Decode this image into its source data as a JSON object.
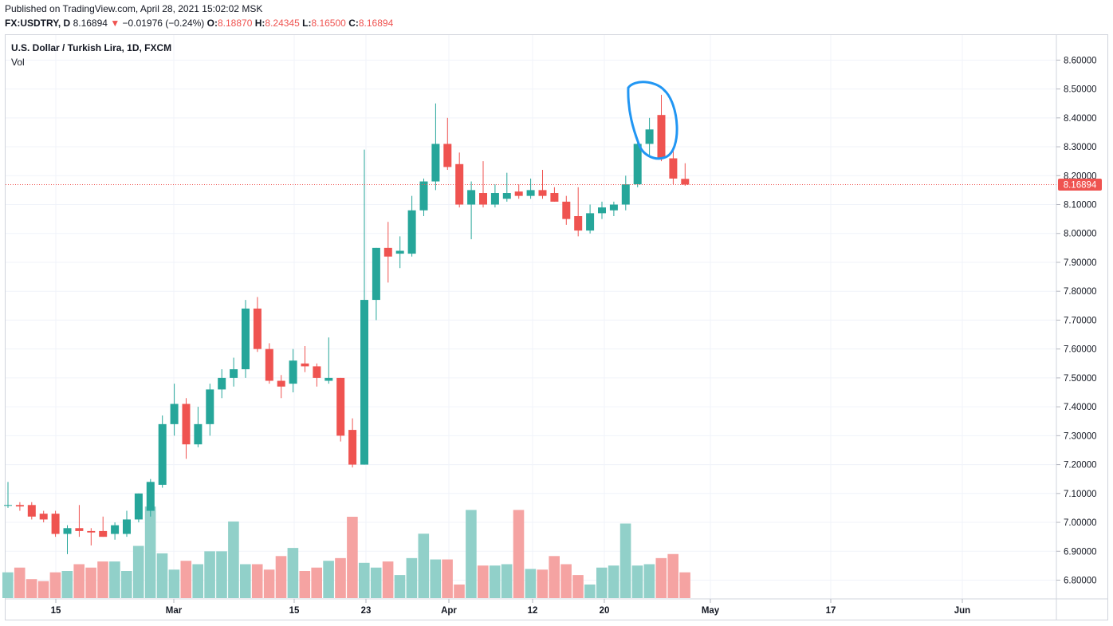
{
  "header": {
    "published": "Published on TradingView.com, April 28, 2021 15:02:02 MSK",
    "symbol": "FX:USDTRY, D",
    "last": "8.16894",
    "change": "−0.01976 (−0.24%)",
    "o_label": "O:",
    "o_value": "8.18870",
    "h_label": "H:",
    "h_value": "8.24345",
    "l_label": "L:",
    "l_value": "8.16500",
    "c_label": "C:",
    "c_value": "8.16894"
  },
  "legend": {
    "title": "U.S. Dollar / Turkish Lira, 1D, FXCM",
    "vol": "Vol"
  },
  "price_label": "8.16894",
  "colors": {
    "up": "#26a69a",
    "down": "#ef5350",
    "up_vol": "#91d0c9",
    "down_vol": "#f5a3a2",
    "grid": "#f0f3fa",
    "annotation": "#2196f3"
  },
  "chart_data": {
    "type": "candlestick",
    "symbol": "FX:USDTRY",
    "interval": "1D",
    "ylim": [
      6.75,
      8.65
    ],
    "y_ticks": [
      "8.60000",
      "8.50000",
      "8.40000",
      "8.30000",
      "8.20000",
      "8.10000",
      "8.00000",
      "7.90000",
      "7.80000",
      "7.70000",
      "7.60000",
      "7.50000",
      "7.40000",
      "7.30000",
      "7.20000",
      "7.10000",
      "7.00000",
      "6.90000",
      "6.80000"
    ],
    "x_ticks": [
      "15",
      "Mar",
      "15",
      "23",
      "Apr",
      "12",
      "20",
      "May",
      "17",
      "Jun"
    ],
    "last_price": 8.16894,
    "candles": [
      {
        "o": 7.06,
        "h": 7.14,
        "l": 7.05,
        "c": 7.06,
        "v": 0.38
      },
      {
        "o": 7.06,
        "h": 7.07,
        "l": 7.04,
        "c": 7.055,
        "v": 0.45
      },
      {
        "o": 7.06,
        "h": 7.07,
        "l": 7.01,
        "c": 7.02,
        "v": 0.28
      },
      {
        "o": 7.03,
        "h": 7.04,
        "l": 7.0,
        "c": 7.01,
        "v": 0.25
      },
      {
        "o": 7.03,
        "h": 7.04,
        "l": 6.95,
        "c": 6.96,
        "v": 0.38
      },
      {
        "o": 6.96,
        "h": 6.99,
        "l": 6.89,
        "c": 6.98,
        "v": 0.4
      },
      {
        "o": 6.98,
        "h": 7.06,
        "l": 6.95,
        "c": 6.97,
        "v": 0.5
      },
      {
        "o": 6.97,
        "h": 6.98,
        "l": 6.92,
        "c": 6.965,
        "v": 0.45
      },
      {
        "o": 6.97,
        "h": 7.02,
        "l": 6.95,
        "c": 6.95,
        "v": 0.54
      },
      {
        "o": 6.96,
        "h": 7.0,
        "l": 6.94,
        "c": 6.99,
        "v": 0.54
      },
      {
        "o": 6.96,
        "h": 7.04,
        "l": 6.95,
        "c": 7.01,
        "v": 0.4
      },
      {
        "o": 7.01,
        "h": 7.1,
        "l": 7.0,
        "c": 7.1,
        "v": 0.77
      },
      {
        "o": 7.04,
        "h": 7.15,
        "l": 7.02,
        "c": 7.14,
        "v": 1.35
      },
      {
        "o": 7.13,
        "h": 7.37,
        "l": 7.12,
        "c": 7.34,
        "v": 0.66
      },
      {
        "o": 7.34,
        "h": 7.48,
        "l": 7.3,
        "c": 7.41,
        "v": 0.42
      },
      {
        "o": 7.41,
        "h": 7.43,
        "l": 7.22,
        "c": 7.27,
        "v": 0.55
      },
      {
        "o": 7.27,
        "h": 7.4,
        "l": 7.26,
        "c": 7.34,
        "v": 0.5
      },
      {
        "o": 7.34,
        "h": 7.48,
        "l": 7.3,
        "c": 7.46,
        "v": 0.69
      },
      {
        "o": 7.46,
        "h": 7.53,
        "l": 7.43,
        "c": 7.5,
        "v": 0.69
      },
      {
        "o": 7.5,
        "h": 7.57,
        "l": 7.47,
        "c": 7.53,
        "v": 1.13
      },
      {
        "o": 7.53,
        "h": 7.77,
        "l": 7.5,
        "c": 7.74,
        "v": 0.5
      },
      {
        "o": 7.74,
        "h": 7.78,
        "l": 7.59,
        "c": 7.6,
        "v": 0.5
      },
      {
        "o": 7.6,
        "h": 7.62,
        "l": 7.48,
        "c": 7.49,
        "v": 0.42
      },
      {
        "o": 7.49,
        "h": 7.51,
        "l": 7.43,
        "c": 7.47,
        "v": 0.62
      },
      {
        "o": 7.48,
        "h": 7.6,
        "l": 7.45,
        "c": 7.56,
        "v": 0.74
      },
      {
        "o": 7.55,
        "h": 7.61,
        "l": 7.52,
        "c": 7.54,
        "v": 0.4
      },
      {
        "o": 7.54,
        "h": 7.55,
        "l": 7.47,
        "c": 7.5,
        "v": 0.45
      },
      {
        "o": 7.49,
        "h": 7.64,
        "l": 7.48,
        "c": 7.5,
        "v": 0.55
      },
      {
        "o": 7.5,
        "h": 7.5,
        "l": 7.28,
        "c": 7.3,
        "v": 0.59
      },
      {
        "o": 7.32,
        "h": 7.36,
        "l": 7.19,
        "c": 7.2,
        "v": 1.2
      },
      {
        "o": 7.2,
        "h": 8.29,
        "l": 7.2,
        "c": 7.77,
        "v": 0.52
      },
      {
        "o": 7.77,
        "h": 7.95,
        "l": 7.7,
        "c": 7.95,
        "v": 0.45
      },
      {
        "o": 7.95,
        "h": 8.04,
        "l": 7.83,
        "c": 7.92,
        "v": 0.54
      },
      {
        "o": 7.93,
        "h": 7.99,
        "l": 7.88,
        "c": 7.94,
        "v": 0.34
      },
      {
        "o": 7.93,
        "h": 8.13,
        "l": 7.92,
        "c": 8.08,
        "v": 0.59
      },
      {
        "o": 8.08,
        "h": 8.19,
        "l": 8.06,
        "c": 8.18,
        "v": 0.95
      },
      {
        "o": 8.18,
        "h": 8.45,
        "l": 8.15,
        "c": 8.31,
        "v": 0.57
      },
      {
        "o": 8.31,
        "h": 8.4,
        "l": 8.22,
        "c": 8.23,
        "v": 0.57
      },
      {
        "o": 8.24,
        "h": 8.28,
        "l": 8.09,
        "c": 8.1,
        "v": 0.2
      },
      {
        "o": 8.1,
        "h": 8.18,
        "l": 7.98,
        "c": 8.15,
        "v": 1.3
      },
      {
        "o": 8.14,
        "h": 8.25,
        "l": 8.09,
        "c": 8.1,
        "v": 0.48
      },
      {
        "o": 8.1,
        "h": 8.17,
        "l": 8.09,
        "c": 8.14,
        "v": 0.48
      },
      {
        "o": 8.12,
        "h": 8.21,
        "l": 8.11,
        "c": 8.14,
        "v": 0.5
      },
      {
        "o": 8.145,
        "h": 8.17,
        "l": 8.12,
        "c": 8.13,
        "v": 1.3
      },
      {
        "o": 8.13,
        "h": 8.19,
        "l": 8.12,
        "c": 8.15,
        "v": 0.43
      },
      {
        "o": 8.15,
        "h": 8.22,
        "l": 8.12,
        "c": 8.13,
        "v": 0.42
      },
      {
        "o": 8.14,
        "h": 8.16,
        "l": 8.11,
        "c": 8.11,
        "v": 0.62
      },
      {
        "o": 8.11,
        "h": 8.13,
        "l": 8.03,
        "c": 8.05,
        "v": 0.5
      },
      {
        "o": 8.06,
        "h": 8.16,
        "l": 7.99,
        "c": 8.01,
        "v": 0.34
      },
      {
        "o": 8.01,
        "h": 8.1,
        "l": 8.0,
        "c": 8.07,
        "v": 0.2
      },
      {
        "o": 8.07,
        "h": 8.11,
        "l": 8.05,
        "c": 8.09,
        "v": 0.45
      },
      {
        "o": 8.08,
        "h": 8.11,
        "l": 8.06,
        "c": 8.1,
        "v": 0.48
      },
      {
        "o": 8.1,
        "h": 8.2,
        "l": 8.08,
        "c": 8.17,
        "v": 1.1
      },
      {
        "o": 8.17,
        "h": 8.32,
        "l": 8.16,
        "c": 8.31,
        "v": 0.48
      },
      {
        "o": 8.31,
        "h": 8.4,
        "l": 8.27,
        "c": 8.36,
        "v": 0.5
      },
      {
        "o": 8.41,
        "h": 8.48,
        "l": 8.25,
        "c": 8.26,
        "v": 0.59
      },
      {
        "o": 8.26,
        "h": 8.3,
        "l": 8.17,
        "c": 8.19,
        "v": 0.65
      },
      {
        "o": 8.189,
        "h": 8.243,
        "l": 8.165,
        "c": 8.169,
        "v": 0.38
      }
    ]
  }
}
